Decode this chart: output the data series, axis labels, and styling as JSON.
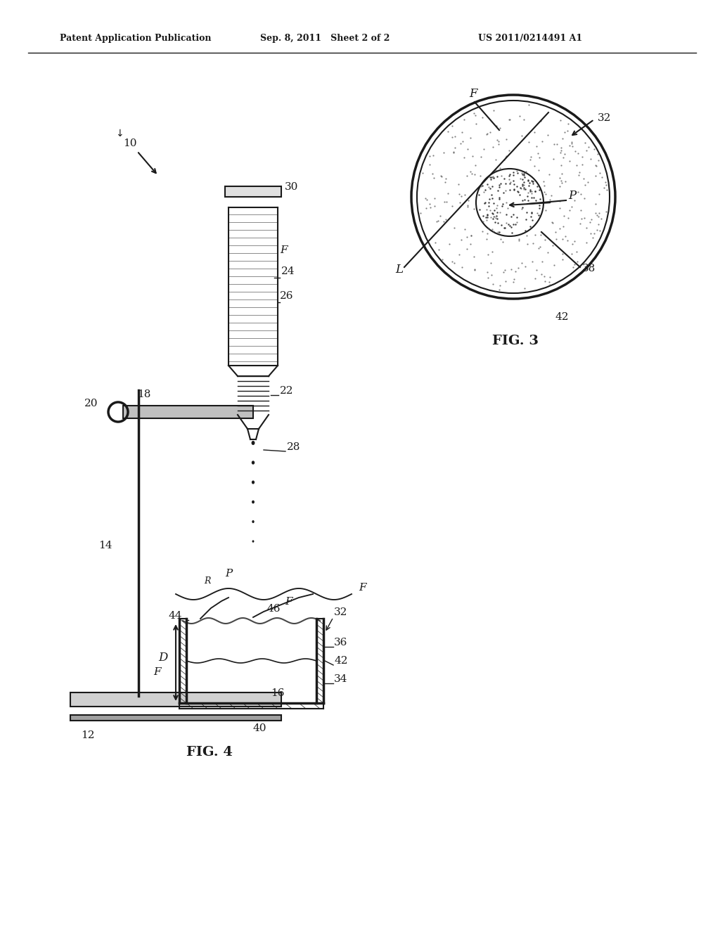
{
  "bg_color": "#ffffff",
  "header_left": "Patent Application Publication",
  "header_mid": "Sep. 8, 2011   Sheet 2 of 2",
  "header_right": "US 2011/0214491 A1",
  "fig3_label": "FIG. 3",
  "fig4_label": "FIG. 4"
}
